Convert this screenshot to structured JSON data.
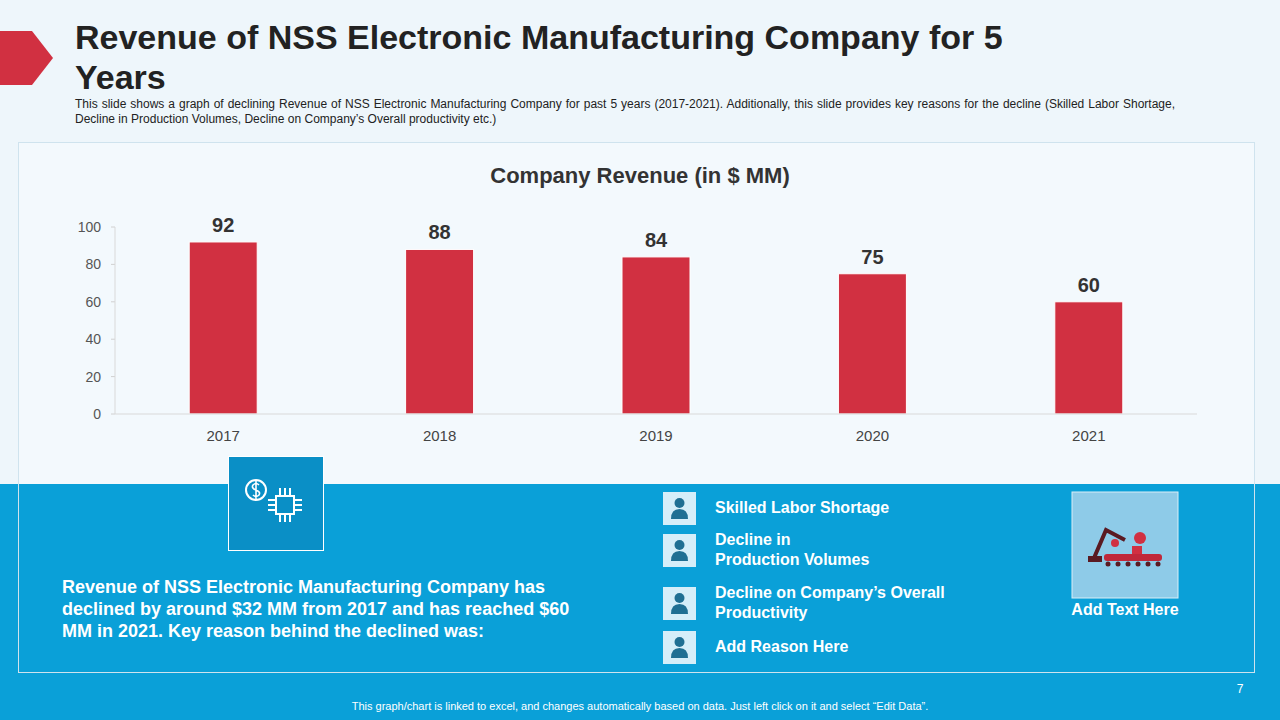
{
  "slide": {
    "title": "Revenue of NSS Electronic Manufacturing Company for 5 Years",
    "subtitle": "This slide shows a graph of declining Revenue  of NSS Electronic Manufacturing Company for past 5 years (2017-2021).  Additionally, this slide provides  key reasons for the decline (Skilled Labor Shortage, Decline in Production Volumes, Decline on Company’s Overall  productivity etc.)",
    "summary": "Revenue of NSS Electronic Manufacturing Company has declined by around $32 MM from 2017 and has reached $60 MM in 2021. Key reason behind the declined was:",
    "reasons": [
      "Skilled Labor Shortage",
      "Decline in\nProduction Volumes",
      "Decline on Company’s Overall\nProductivity",
      "Add Reason Here"
    ],
    "image_caption": "Add Text Here",
    "footer_note": "This graph/chart is linked to excel, and changes automatically based on data. Just left click on it and select “Edit Data”.",
    "page_number": "7"
  },
  "chart_data": {
    "type": "bar",
    "title": "Company Revenue (in $ MM)",
    "categories": [
      "2017",
      "2018",
      "2019",
      "2020",
      "2021"
    ],
    "values": [
      92,
      88,
      84,
      75,
      60
    ],
    "color": "#d13041",
    "ylim": [
      0,
      100
    ],
    "yticks": [
      0,
      20,
      40,
      60,
      80,
      100
    ],
    "grid": false,
    "data_labels": true
  }
}
